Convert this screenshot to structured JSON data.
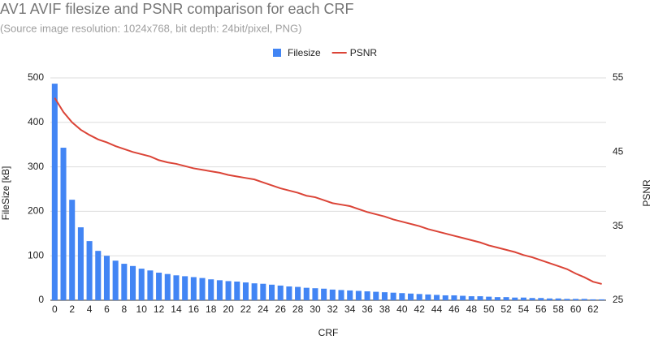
{
  "chart_data": {
    "type": "bar-line",
    "title": "AV1 AVIF filesize and PSNR comparison for each CRF",
    "subtitle": "(Source image resolution: 1024x768, bit depth: 24bit/pixel, PNG)",
    "x_label": "CRF",
    "y_label": "FileSize [kB]",
    "y2_label": "PSNR",
    "categories": [
      "0",
      null,
      "2",
      null,
      "4",
      null,
      "6",
      null,
      "8",
      null,
      "10",
      null,
      "12",
      null,
      "14",
      null,
      "16",
      null,
      "18",
      null,
      "20",
      null,
      "22",
      null,
      "24",
      null,
      "26",
      null,
      "28",
      null,
      "30",
      null,
      "32",
      null,
      "34",
      null,
      "36",
      null,
      "38",
      null,
      "40",
      null,
      "42",
      null,
      "44",
      null,
      "46",
      null,
      "48",
      null,
      "50",
      null,
      "52",
      null,
      "54",
      null,
      "56",
      null,
      "58",
      null,
      "60",
      null,
      "62",
      null
    ],
    "series": [
      {
        "name": "Filesize",
        "kind": "bar",
        "color": "#4285f4",
        "values": [
          487,
          343,
          226,
          164,
          133,
          111,
          100,
          89,
          82,
          77,
          71,
          67,
          62,
          59,
          56,
          54,
          52,
          50,
          47,
          45,
          43,
          42,
          40,
          38,
          37,
          35,
          33,
          31,
          30,
          28,
          27,
          26,
          24,
          23,
          22,
          21,
          20,
          19,
          18,
          17,
          16,
          15,
          14,
          13,
          12,
          11,
          11,
          10,
          9,
          9,
          8,
          7,
          7,
          6,
          6,
          5,
          5,
          4,
          4,
          3,
          3,
          3,
          2,
          2
        ]
      },
      {
        "name": "PSNR",
        "kind": "line",
        "axis": "y2",
        "color": "#db4437",
        "values": [
          52.3,
          50.4,
          49.0,
          48.0,
          47.3,
          46.7,
          46.3,
          45.8,
          45.4,
          45.0,
          44.7,
          44.4,
          43.9,
          43.6,
          43.4,
          43.1,
          42.8,
          42.6,
          42.4,
          42.2,
          41.9,
          41.7,
          41.5,
          41.3,
          40.9,
          40.5,
          40.1,
          39.8,
          39.5,
          39.1,
          38.9,
          38.5,
          38.1,
          37.9,
          37.7,
          37.3,
          36.9,
          36.6,
          36.3,
          35.9,
          35.6,
          35.3,
          35.0,
          34.6,
          34.3,
          34.0,
          33.7,
          33.4,
          33.1,
          32.8,
          32.4,
          32.1,
          31.8,
          31.5,
          31.1,
          30.8,
          30.4,
          30.0,
          29.6,
          29.2,
          28.6,
          28.1,
          27.5,
          27.2
        ]
      }
    ],
    "ylim": [
      0,
      500
    ],
    "yticks": [
      0,
      100,
      200,
      300,
      400,
      500
    ],
    "y2lim": [
      25,
      55
    ],
    "y2ticks": [
      25,
      35,
      45,
      55
    ],
    "grid": true,
    "legend": "top"
  }
}
